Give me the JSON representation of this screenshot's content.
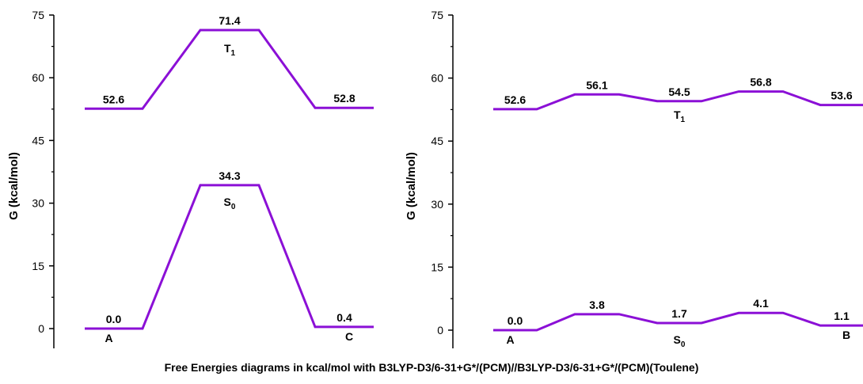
{
  "caption": "Free Energies diagrams in kcal/mol with B3LYP-D3/6-31+G*/(PCM)//B3LYP-D3/6-31+G*/(PCM)(Toulene)",
  "colors": {
    "line": "#8B10D6",
    "axis": "#000000"
  },
  "chart_data": [
    {
      "type": "line",
      "title": "",
      "xlabel": "",
      "ylabel": "G (kcal/mol)",
      "ylim": [
        0,
        75
      ],
      "yticks": [
        "0",
        "15",
        "30",
        "45",
        "60",
        "75"
      ],
      "grid": false,
      "series": [
        {
          "state": "T1",
          "label_main": "T",
          "label_sub": "1",
          "values": [
            52.6,
            71.4,
            52.8
          ],
          "value_labels": [
            "52.6",
            "71.4",
            "52.8"
          ]
        },
        {
          "state": "S0",
          "label_main": "S",
          "label_sub": "0",
          "values": [
            0.0,
            34.3,
            0.4
          ],
          "value_labels": [
            "0.0",
            "34.3",
            "0.4"
          ]
        }
      ],
      "point_labels": [
        {
          "series": 1,
          "index": 0,
          "text": "A"
        },
        {
          "series": 1,
          "index": 2,
          "text": "C"
        }
      ]
    },
    {
      "type": "line",
      "title": "",
      "xlabel": "",
      "ylabel": "G (kcal/mol)",
      "ylim": [
        0,
        75
      ],
      "yticks": [
        "0",
        "15",
        "30",
        "45",
        "60",
        "75"
      ],
      "grid": false,
      "series": [
        {
          "state": "T1",
          "label_main": "T",
          "label_sub": "1",
          "values": [
            52.6,
            56.1,
            54.5,
            56.8,
            53.6
          ],
          "value_labels": [
            "52.6",
            "56.1",
            "54.5",
            "56.8",
            "53.6"
          ]
        },
        {
          "state": "S0",
          "label_main": "S",
          "label_sub": "0",
          "values": [
            0.0,
            3.8,
            1.7,
            4.1,
            1.1
          ],
          "value_labels": [
            "0.0",
            "3.8",
            "1.7",
            "4.1",
            "1.1"
          ]
        }
      ],
      "point_labels": [
        {
          "series": 1,
          "index": 0,
          "text": "A"
        },
        {
          "series": 1,
          "index": 4,
          "text": "B"
        }
      ]
    }
  ]
}
